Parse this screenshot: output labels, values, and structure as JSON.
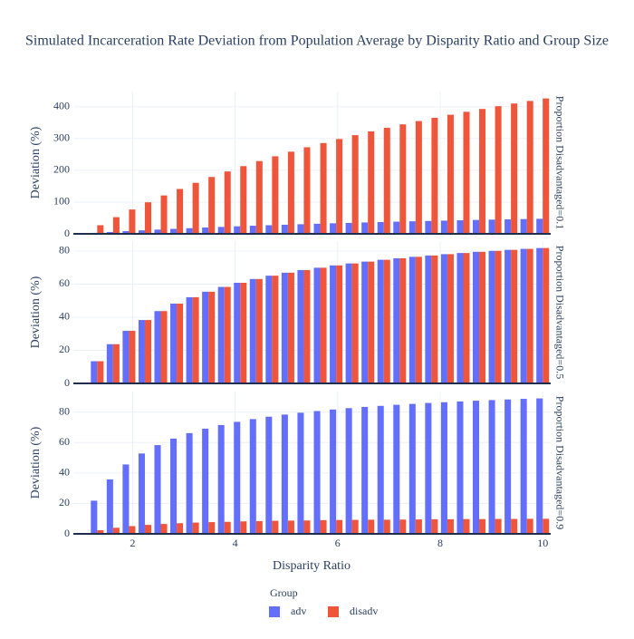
{
  "chart_data": {
    "type": "bar",
    "title": "Simulated Incarceration Rate Deviation from Population Average by Disparity Ratio and Group Size",
    "xlabel": "Disparity Ratio",
    "legend_title": "Group",
    "grid": true,
    "x": [
      1,
      1.31,
      1.62,
      1.93,
      2.24,
      2.55,
      2.86,
      3.17,
      3.48,
      3.79,
      4.1,
      4.41,
      4.72,
      5.03,
      5.34,
      5.66,
      5.97,
      6.28,
      6.59,
      6.9,
      7.21,
      7.52,
      7.83,
      8.14,
      8.45,
      8.76,
      9.07,
      9.38,
      9.69,
      10
    ],
    "xlim": [
      0.845,
      10.155
    ],
    "xticks": [
      2,
      4,
      6,
      8,
      10
    ],
    "panels": [
      {
        "label": "Proportion Disadvantaged=0.1",
        "ylabel": "Deviation (%)",
        "ylim": [
          0,
          448
        ],
        "yticks": [
          0,
          100,
          200,
          300,
          400
        ],
        "series": [
          {
            "name": "adv",
            "color": "#636efa",
            "values": [
              0,
              3.0,
              5.8,
              8.5,
              11.0,
              13.4,
              15.7,
              17.8,
              19.9,
              21.8,
              23.7,
              25.5,
              27.1,
              28.7,
              30.3,
              31.8,
              33.2,
              34.5,
              35.8,
              37.1,
              38.3,
              39.5,
              40.6,
              41.6,
              42.7,
              43.7,
              44.7,
              45.6,
              46.5,
              47.4
            ]
          },
          {
            "name": "disadv",
            "color": "#ef553b",
            "values": [
              0,
              27.1,
              52.6,
              76.7,
              99.4,
              120.9,
              141.3,
              160.6,
              179.0,
              196.5,
              213.2,
              229.1,
              244.2,
              258.7,
              272.6,
              285.9,
              298.6,
              310.8,
              322.6,
              333.8,
              344.7,
              355.1,
              365.2,
              374.9,
              384.2,
              393.2,
              401.9,
              410.3,
              418.4,
              426.3
            ]
          }
        ]
      },
      {
        "label": "Proportion Disadvantaged=0.5",
        "ylabel": "Deviation (%)",
        "ylim": [
          0,
          86
        ],
        "yticks": [
          0,
          20,
          40,
          60,
          80
        ],
        "series": [
          {
            "name": "adv",
            "color": "#636efa",
            "values": [
              0,
              13.4,
              23.7,
              31.8,
              38.3,
              43.7,
              48.2,
              52.1,
              55.4,
              58.3,
              60.8,
              63.1,
              65.1,
              66.9,
              68.5,
              69.9,
              71.3,
              72.5,
              73.6,
              74.7,
              75.6,
              76.5,
              77.3,
              78.1,
              78.8,
              79.5,
              80.1,
              80.7,
              81.3,
              81.8
            ]
          },
          {
            "name": "disadv",
            "color": "#ef553b",
            "values": [
              0,
              13.4,
              23.7,
              31.8,
              38.3,
              43.7,
              48.2,
              52.1,
              55.4,
              58.3,
              60.8,
              63.1,
              65.1,
              66.9,
              68.5,
              69.9,
              71.3,
              72.5,
              73.6,
              74.7,
              75.6,
              76.5,
              77.3,
              78.1,
              78.8,
              79.5,
              80.1,
              80.7,
              81.3,
              81.8
            ]
          }
        ]
      },
      {
        "label": "Proportion Disadvantaged=0.9",
        "ylabel": "Deviation (%)",
        "ylim": [
          0,
          93.5
        ],
        "yticks": [
          0,
          20,
          40,
          60,
          80
        ],
        "series": [
          {
            "name": "adv",
            "color": "#636efa",
            "values": [
              0,
              21.8,
              35.8,
              45.6,
              52.8,
              58.3,
              62.6,
              66.2,
              69.1,
              71.5,
              73.6,
              75.4,
              77.0,
              78.4,
              79.6,
              80.7,
              81.7,
              82.6,
              83.4,
              84.1,
              84.8,
              85.4,
              86.0,
              86.5,
              87.0,
              87.5,
              87.9,
              88.3,
              88.7,
              89.0
            ]
          },
          {
            "name": "disadv",
            "color": "#ef553b",
            "values": [
              0,
              2.4,
              4.0,
              5.1,
              5.9,
              6.5,
              7.0,
              7.4,
              7.7,
              7.9,
              8.2,
              8.4,
              8.6,
              8.7,
              8.8,
              9.0,
              9.1,
              9.2,
              9.3,
              9.3,
              9.4,
              9.5,
              9.6,
              9.6,
              9.7,
              9.7,
              9.8,
              9.8,
              9.9,
              9.9
            ]
          }
        ]
      }
    ]
  }
}
